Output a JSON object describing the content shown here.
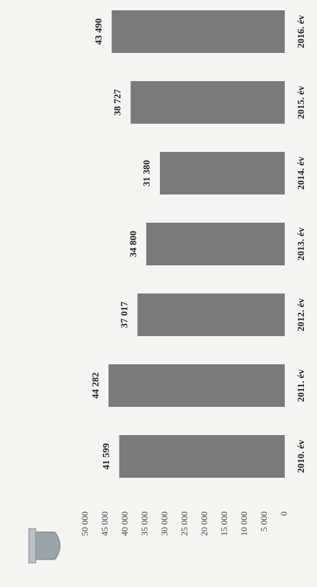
{
  "chart_data": {
    "type": "bar",
    "categories": [
      "2010. év",
      "2011. év",
      "2012. év",
      "2013. év",
      "2014. év",
      "2015. év",
      "2016. év"
    ],
    "values": [
      41599,
      44282,
      37017,
      34800,
      31380,
      38727,
      43490
    ],
    "value_labels": [
      "41 599",
      "44 282",
      "37 017",
      "34 800",
      "31 380",
      "38 727",
      "43 490"
    ],
    "color": "#7a7a7a",
    "ylim": [
      0,
      50000
    ],
    "yticks": [
      {
        "value": 0,
        "label": "0"
      },
      {
        "value": 5000,
        "label": "5 000"
      },
      {
        "value": 10000,
        "label": "10 000"
      },
      {
        "value": 15000,
        "label": "15 000"
      },
      {
        "value": 20000,
        "label": "20 000"
      },
      {
        "value": 25000,
        "label": "25 000"
      },
      {
        "value": 30000,
        "label": "30 000"
      },
      {
        "value": 35000,
        "label": "35 000"
      },
      {
        "value": 40000,
        "label": "40 000"
      },
      {
        "value": 45000,
        "label": "45 000"
      },
      {
        "value": 50000,
        "label": "50 000"
      }
    ],
    "grid": false
  }
}
